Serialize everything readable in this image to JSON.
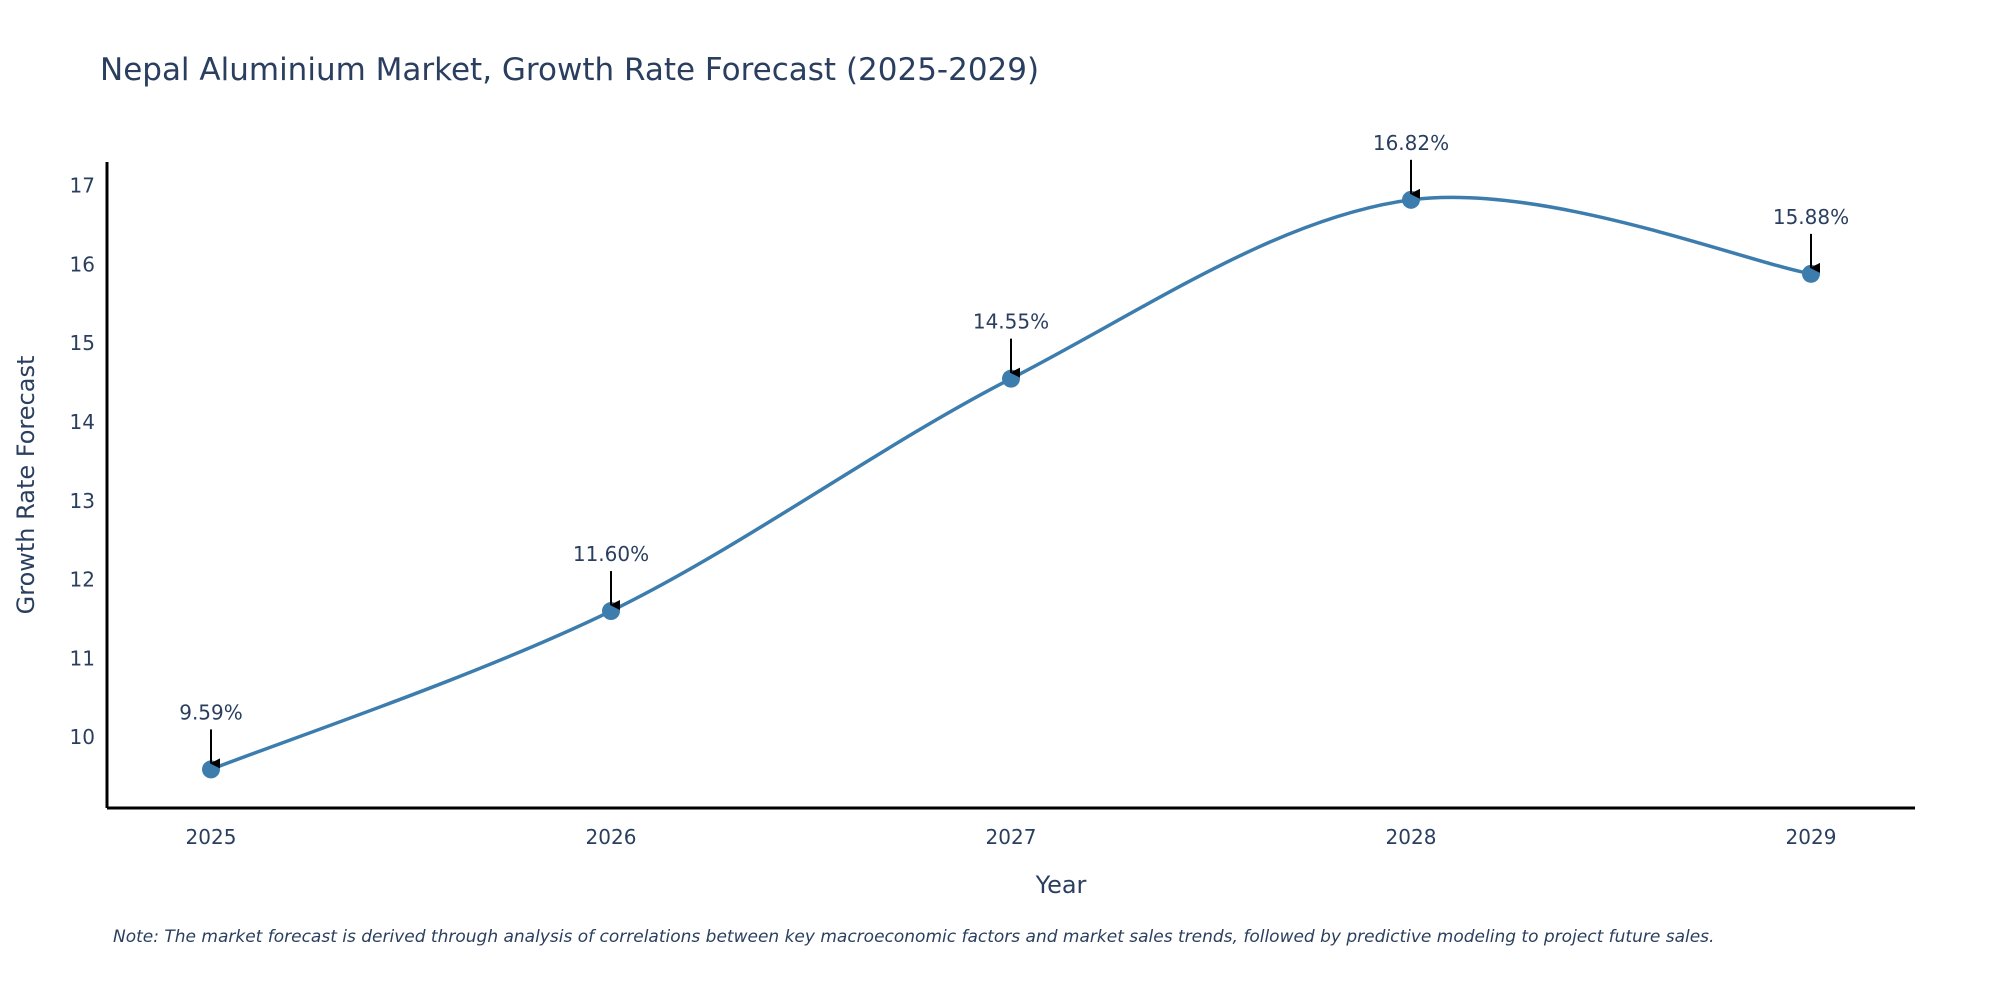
{
  "chart_data": {
    "type": "line",
    "title": "Nepal Aluminium Market, Growth Rate Forecast (2025-2029)",
    "xlabel": "Year",
    "ylabel": "Growth Rate Forecast",
    "categories": [
      "2025",
      "2026",
      "2027",
      "2028",
      "2029"
    ],
    "series": [
      {
        "values": [
          9.59,
          11.6,
          14.55,
          16.82,
          15.88
        ],
        "labels": [
          "9.59%",
          "11.60%",
          "14.55%",
          "16.82%",
          "15.88%"
        ]
      }
    ],
    "ylim": [
      9.1,
      17.3
    ],
    "yticks": [
      10,
      11,
      12,
      13,
      14,
      15,
      16,
      17
    ],
    "line_color": "#3d7dae",
    "marker_color": "#3d7dae",
    "grid": false,
    "note": "Note: The market forecast is derived through analysis of correlations between key macroeconomic factors and market sales trends, followed by predictive modeling to project future sales."
  }
}
